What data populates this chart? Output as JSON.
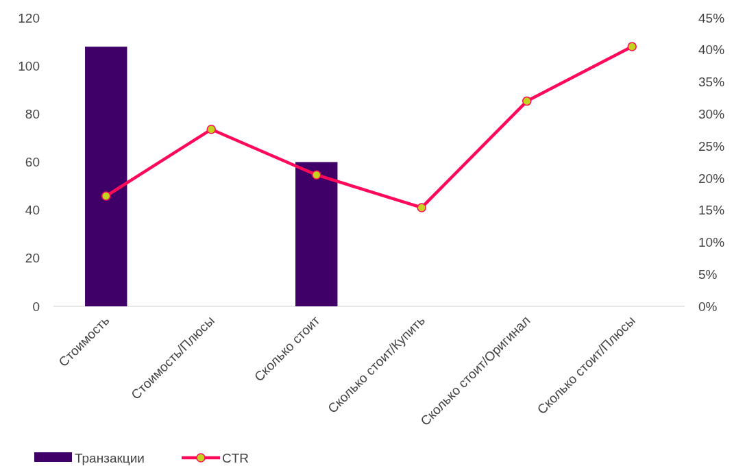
{
  "chart_data": {
    "type": "bar",
    "categories": [
      "Стоимость",
      "Стоимость/Плюсы",
      "Сколько стоит",
      "Сколько стоит/Купить",
      "Сколько стоит/Оригинал",
      "Сколько стоит/Плюсы"
    ],
    "series": [
      {
        "name": "Транзакции",
        "color": "#3f0068",
        "values": [
          108,
          null,
          60,
          null,
          null,
          null
        ]
      },
      {
        "name": "CTR",
        "type": "line",
        "axis": "y2",
        "color": "#ff0a5a",
        "marker": "circle",
        "values": [
          17.2,
          27.6,
          20.5,
          15.4,
          32.0,
          40.5
        ]
      }
    ],
    "ylim": [
      0,
      120
    ],
    "yticks": [
      0,
      20,
      40,
      60,
      80,
      100,
      120
    ],
    "y2lim": [
      0,
      45
    ],
    "y2ticks": [
      {
        "value": 0,
        "label": "0%"
      },
      {
        "value": 5,
        "label": "5%"
      },
      {
        "value": 10,
        "label": "10%"
      },
      {
        "value": 15,
        "label": "15%"
      },
      {
        "value": 20,
        "label": "20%"
      },
      {
        "value": 25,
        "label": "25%"
      },
      {
        "value": 30,
        "label": "30%"
      },
      {
        "value": 35,
        "label": "35%"
      },
      {
        "value": 40,
        "label": "40%"
      },
      {
        "value": 45,
        "label": "45%"
      }
    ],
    "legend": "bottom left"
  }
}
